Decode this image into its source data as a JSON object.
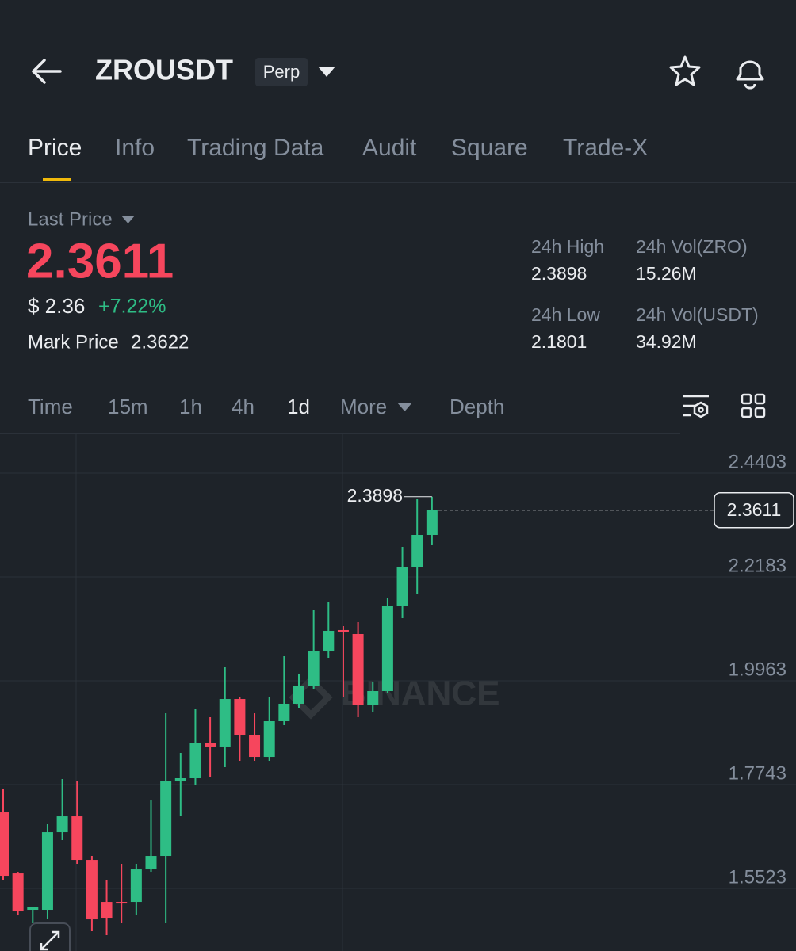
{
  "header": {
    "title": "ZROUSDT",
    "badge": "Perp"
  },
  "tabs": [
    "Price",
    "Info",
    "Trading Data",
    "Audit",
    "Square",
    "Trade-X"
  ],
  "price_panel": {
    "label": "Last Price",
    "price": "2.3611",
    "usd": "$ 2.36",
    "change": "+7.22%",
    "mark_label": "Mark Price",
    "mark_value": "2.3622"
  },
  "stats": [
    {
      "label": "24h High",
      "value": "2.3898"
    },
    {
      "label": "24h Vol(ZRO)",
      "value": "15.26M"
    },
    {
      "label": "24h Low",
      "value": "2.1801"
    },
    {
      "label": "24h Vol(USDT)",
      "value": "34.92M"
    }
  ],
  "intervals": [
    "Time",
    "15m",
    "1h",
    "4h",
    "1d",
    "More",
    "Depth"
  ],
  "chart_data": {
    "type": "candlestick",
    "watermark": "BINANCE",
    "up_color": "#2ebd85",
    "down_color": "#f6465d",
    "ylim": [
      1.4185,
      2.5233
    ],
    "yticks": [
      2.4403,
      2.2183,
      1.9963,
      1.7743,
      1.5523
    ],
    "grid": true,
    "last_price": 2.3611,
    "high_marker": 2.3898,
    "open": [
      1.715,
      1.5845,
      1.5066,
      1.5066,
      1.6726,
      1.7065,
      1.6133,
      1.5235,
      1.5235,
      1.5235,
      1.593,
      1.6218,
      1.7811,
      1.7879,
      1.8641,
      1.8557,
      1.9573,
      1.8811,
      1.8336,
      1.9099,
      1.9472,
      1.9861,
      2.059,
      2.1048,
      2.0963,
      1.9438,
      1.9743,
      2.1556,
      2.2403,
      2.3081
    ],
    "high": [
      1.7658,
      1.5879,
      1.5117,
      1.6896,
      1.7862,
      1.7828,
      1.6218,
      1.571,
      1.6049,
      1.6049,
      1.7404,
      1.9268,
      1.8421,
      1.9353,
      1.9184,
      2.0251,
      1.9607,
      1.9268,
      1.9607,
      2.0488,
      2.0116,
      2.1471,
      2.1641,
      2.1132,
      2.1217,
      1.9946,
      2.1726,
      2.2827,
      2.3844,
      2.3898
    ],
    "low": [
      1.571,
      1.4947,
      1.4778,
      1.4862,
      1.6557,
      1.6049,
      1.4608,
      1.4524,
      1.4778,
      1.4947,
      1.5879,
      1.4778,
      1.7065,
      1.7743,
      1.7913,
      1.8116,
      1.8252,
      1.8252,
      1.8252,
      1.9014,
      1.9387,
      1.9777,
      2.0455,
      1.9607,
      1.9184,
      1.9302,
      1.9692,
      2.1302,
      2.181,
      2.2861
    ],
    "close": [
      1.5794,
      1.5032,
      1.5117,
      1.6726,
      1.7065,
      1.6133,
      1.4862,
      1.4896,
      1.5201,
      1.593,
      1.6218,
      1.7828,
      1.7879,
      1.8641,
      1.8557,
      1.9573,
      1.8794,
      1.8336,
      1.9099,
      1.9472,
      1.9861,
      2.059,
      2.1031,
      2.0997,
      1.9438,
      1.9743,
      2.1556,
      2.2403,
      2.3081,
      2.3611
    ]
  }
}
